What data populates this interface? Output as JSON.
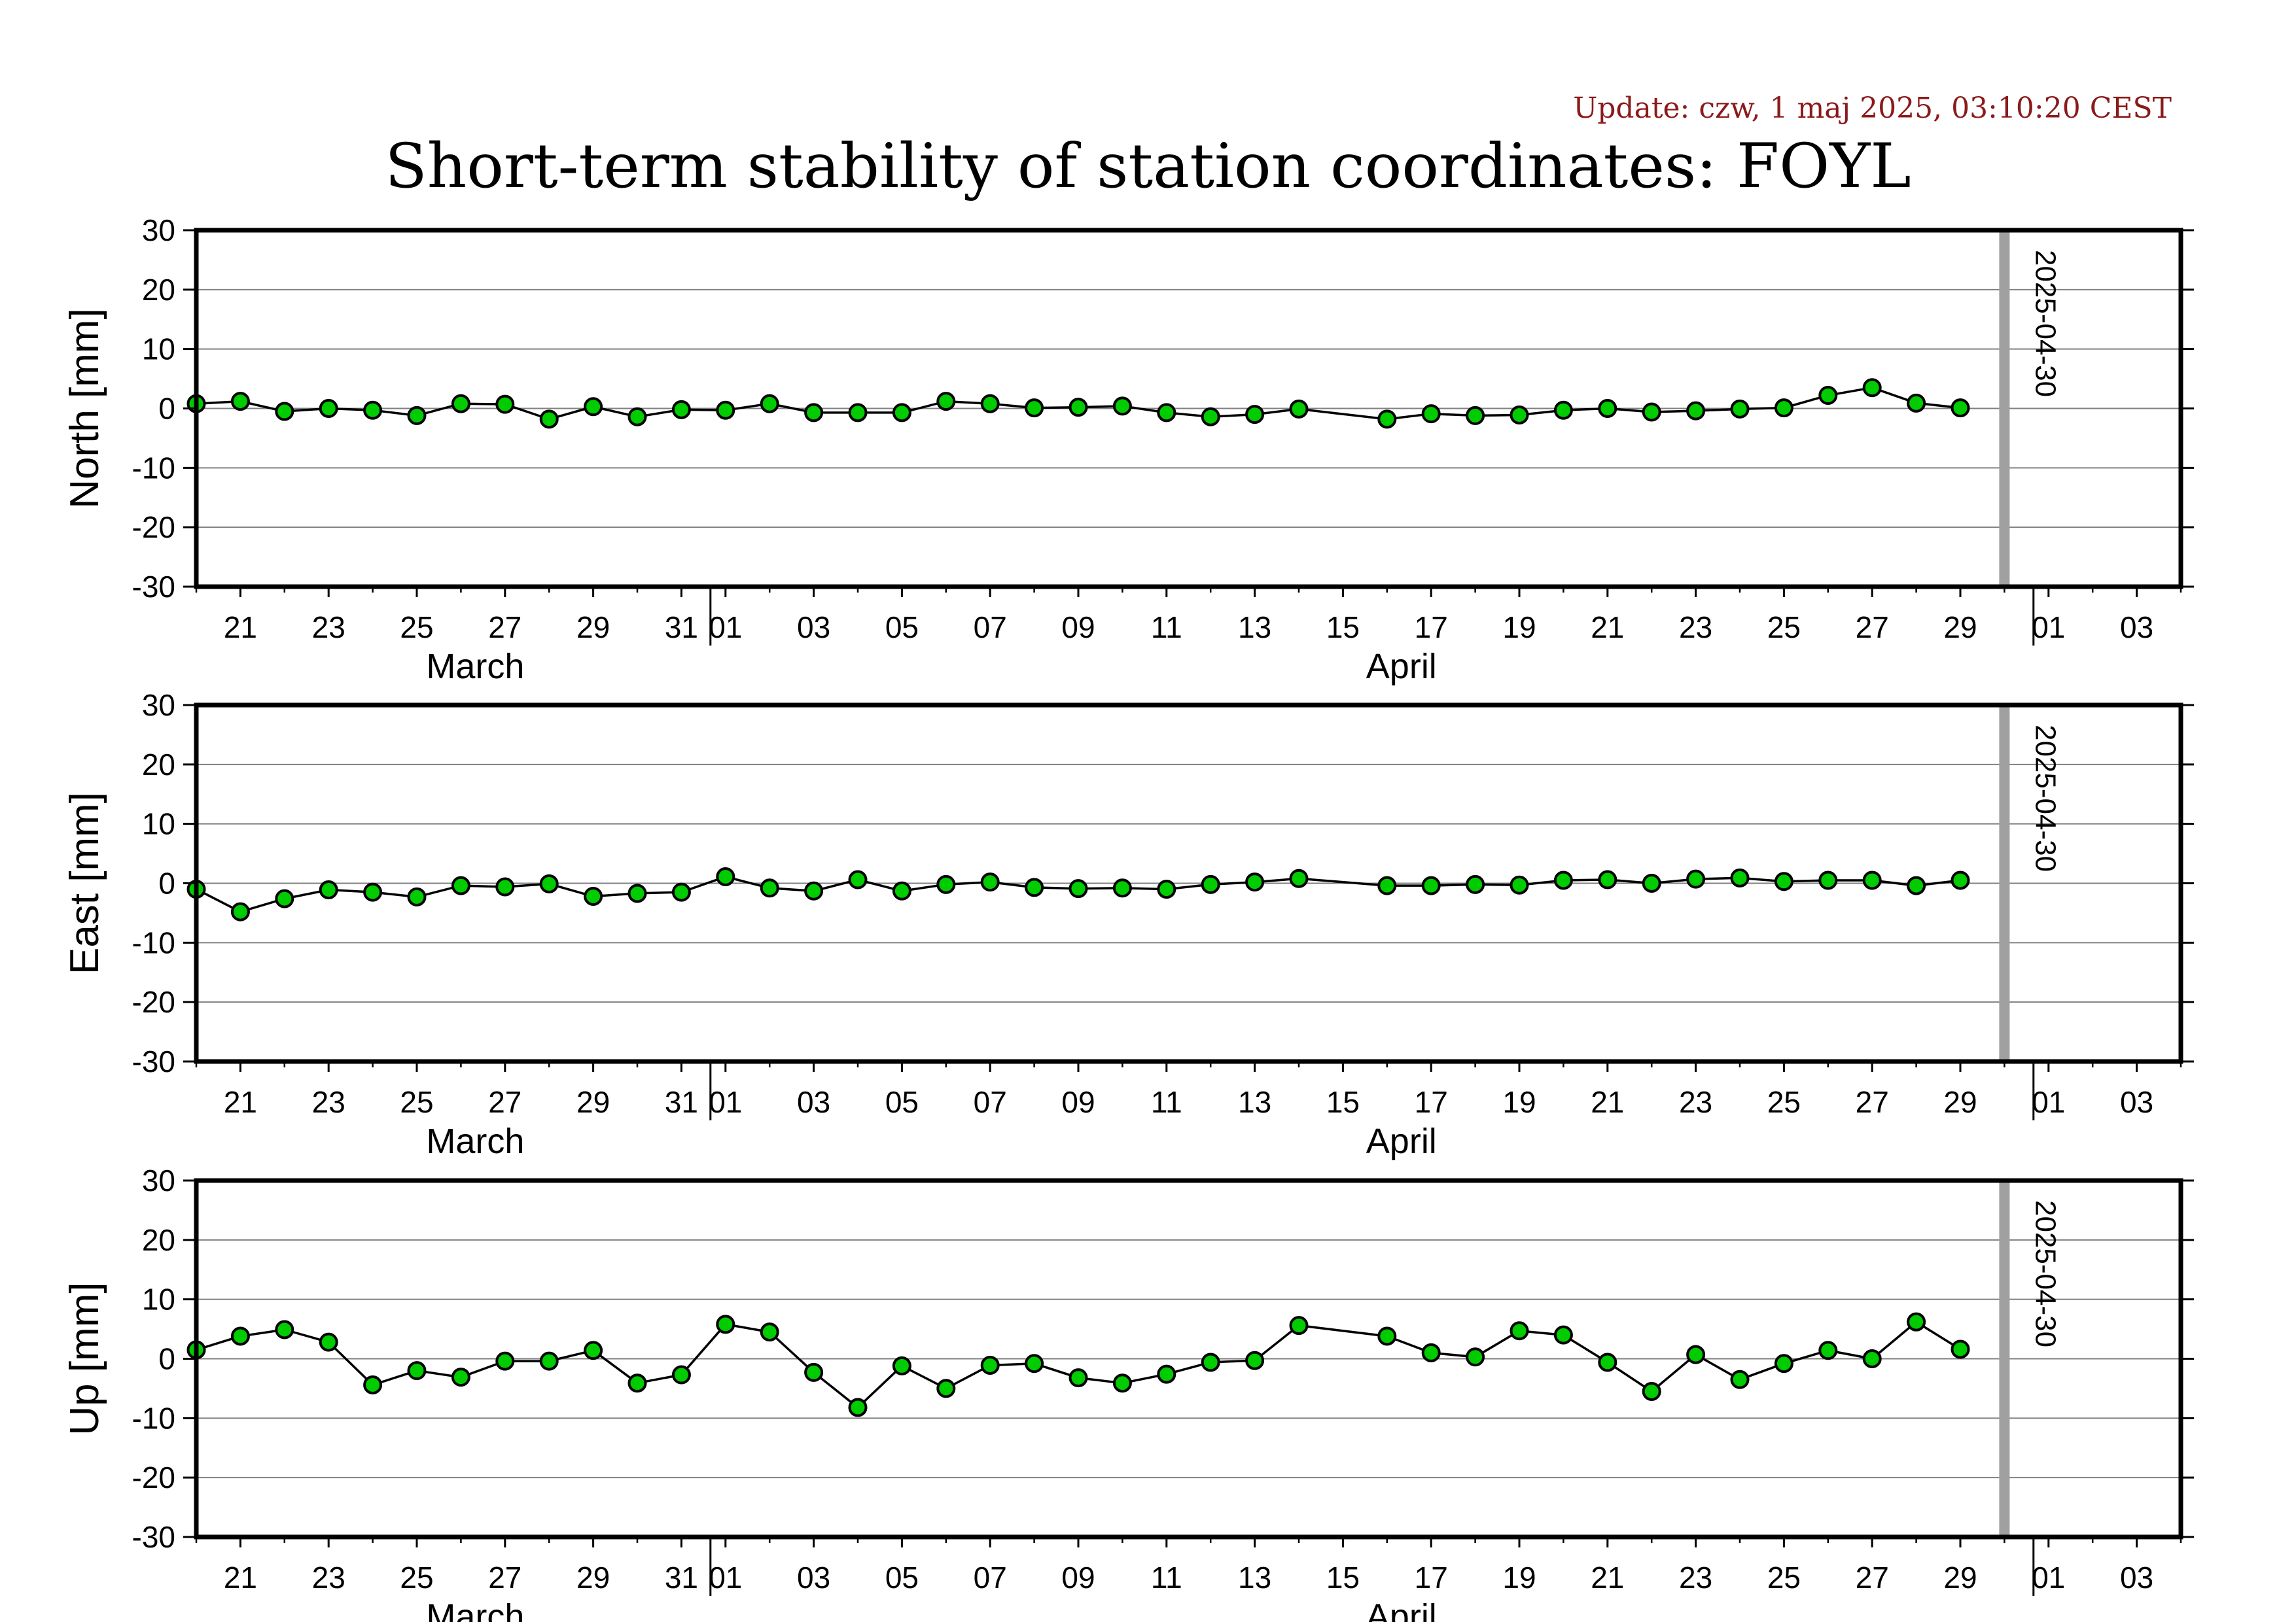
{
  "update_text": "Update: czw, 1 maj 2025, 03:10:20 CEST",
  "title": "Short-term stability of station coordinates: FOYL",
  "colors": {
    "marker_fill": "#00cc00",
    "marker_stroke": "#000000",
    "line": "#000000",
    "grid": "#808080",
    "marker_line": "#a0a0a0",
    "update_text": "#8b1a1a"
  },
  "x_axis": {
    "start": "2025-03-20",
    "end": "2025-05-04",
    "tick_dates": [
      "2025-03-21",
      "2025-03-23",
      "2025-03-25",
      "2025-03-27",
      "2025-03-29",
      "2025-03-31",
      "2025-04-01",
      "2025-04-03",
      "2025-04-05",
      "2025-04-07",
      "2025-04-09",
      "2025-04-11",
      "2025-04-13",
      "2025-04-15",
      "2025-04-17",
      "2025-04-19",
      "2025-04-21",
      "2025-04-23",
      "2025-04-25",
      "2025-04-27",
      "2025-04-29",
      "2025-05-01",
      "2025-05-03"
    ],
    "tick_labels": [
      "21",
      "23",
      "25",
      "27",
      "29",
      "31",
      "01",
      "03",
      "05",
      "07",
      "09",
      "11",
      "13",
      "15",
      "17",
      "19",
      "21",
      "23",
      "25",
      "27",
      "29",
      "01",
      "03"
    ],
    "month_boundaries": [
      "2025-04-01",
      "2025-05-01"
    ],
    "month_labels": [
      {
        "label": "March",
        "date": "2025-03-26"
      },
      {
        "label": "April",
        "date": "2025-04-16"
      }
    ]
  },
  "marker": {
    "date": "2025-04-30",
    "label": "2025-04-30"
  },
  "chart_data": [
    {
      "type": "line",
      "ylabel": "North [mm]",
      "ylim": [
        -30,
        30
      ],
      "yticks": [
        30,
        20,
        10,
        0,
        -10,
        -20,
        -30
      ],
      "grid": true,
      "x": [
        "2025-03-20",
        "2025-03-21",
        "2025-03-22",
        "2025-03-23",
        "2025-03-24",
        "2025-03-25",
        "2025-03-26",
        "2025-03-27",
        "2025-03-28",
        "2025-03-29",
        "2025-03-30",
        "2025-03-31",
        "2025-04-01",
        "2025-04-02",
        "2025-04-03",
        "2025-04-04",
        "2025-04-05",
        "2025-04-06",
        "2025-04-07",
        "2025-04-08",
        "2025-04-09",
        "2025-04-10",
        "2025-04-11",
        "2025-04-12",
        "2025-04-13",
        "2025-04-14",
        "2025-04-16",
        "2025-04-17",
        "2025-04-18",
        "2025-04-19",
        "2025-04-20",
        "2025-04-21",
        "2025-04-22",
        "2025-04-23",
        "2025-04-24",
        "2025-04-25",
        "2025-04-26",
        "2025-04-27",
        "2025-04-28",
        "2025-04-29"
      ],
      "values": [
        0.8,
        1.2,
        -0.5,
        0,
        -0.3,
        -1.2,
        0.8,
        0.7,
        -1.8,
        0.3,
        -1.4,
        -0.2,
        -0.3,
        0.8,
        -0.7,
        -0.7,
        -0.7,
        1.2,
        0.8,
        0.1,
        0.2,
        0.4,
        -0.7,
        -1.4,
        -1.0,
        -0.1,
        -1.8,
        -0.9,
        -1.2,
        -1.1,
        -0.3,
        0,
        -0.6,
        -0.4,
        -0.1,
        0.1,
        2.2,
        3.5,
        0.9,
        0.1
      ]
    },
    {
      "type": "line",
      "ylabel": "East [mm]",
      "ylim": [
        -30,
        30
      ],
      "yticks": [
        30,
        20,
        10,
        0,
        -10,
        -20,
        -30
      ],
      "grid": true,
      "x": [
        "2025-03-20",
        "2025-03-21",
        "2025-03-22",
        "2025-03-23",
        "2025-03-24",
        "2025-03-25",
        "2025-03-26",
        "2025-03-27",
        "2025-03-28",
        "2025-03-29",
        "2025-03-30",
        "2025-03-31",
        "2025-04-01",
        "2025-04-02",
        "2025-04-03",
        "2025-04-04",
        "2025-04-05",
        "2025-04-06",
        "2025-04-07",
        "2025-04-08",
        "2025-04-09",
        "2025-04-10",
        "2025-04-11",
        "2025-04-12",
        "2025-04-13",
        "2025-04-14",
        "2025-04-16",
        "2025-04-17",
        "2025-04-18",
        "2025-04-19",
        "2025-04-20",
        "2025-04-21",
        "2025-04-22",
        "2025-04-23",
        "2025-04-24",
        "2025-04-25",
        "2025-04-26",
        "2025-04-27",
        "2025-04-28",
        "2025-04-29"
      ],
      "values": [
        -1.0,
        -4.8,
        -2.6,
        -1.1,
        -1.5,
        -2.3,
        -0.4,
        -0.6,
        -0.1,
        -2.2,
        -1.7,
        -1.5,
        1.1,
        -0.8,
        -1.3,
        0.6,
        -1.3,
        -0.2,
        0.2,
        -0.7,
        -0.9,
        -0.8,
        -1.0,
        -0.2,
        0.2,
        0.8,
        -0.4,
        -0.4,
        -0.2,
        -0.3,
        0.5,
        0.6,
        0,
        0.7,
        0.9,
        0.3,
        0.5,
        0.5,
        -0.4,
        0.5
      ]
    },
    {
      "type": "line",
      "ylabel": "Up [mm]",
      "ylim": [
        -30,
        30
      ],
      "yticks": [
        30,
        20,
        10,
        0,
        -10,
        -20,
        -30
      ],
      "grid": true,
      "x": [
        "2025-03-20",
        "2025-03-21",
        "2025-03-22",
        "2025-03-23",
        "2025-03-24",
        "2025-03-25",
        "2025-03-26",
        "2025-03-27",
        "2025-03-28",
        "2025-03-29",
        "2025-03-30",
        "2025-03-31",
        "2025-04-01",
        "2025-04-02",
        "2025-04-03",
        "2025-04-04",
        "2025-04-05",
        "2025-04-06",
        "2025-04-07",
        "2025-04-08",
        "2025-04-09",
        "2025-04-10",
        "2025-04-11",
        "2025-04-12",
        "2025-04-13",
        "2025-04-14",
        "2025-04-16",
        "2025-04-17",
        "2025-04-18",
        "2025-04-19",
        "2025-04-20",
        "2025-04-21",
        "2025-04-22",
        "2025-04-23",
        "2025-04-24",
        "2025-04-25",
        "2025-04-26",
        "2025-04-27",
        "2025-04-28",
        "2025-04-29"
      ],
      "values": [
        1.5,
        3.8,
        4.9,
        2.8,
        -4.4,
        -2.0,
        -3.1,
        -0.4,
        -0.4,
        1.4,
        -4.1,
        -2.7,
        5.8,
        4.5,
        -2.3,
        -8.2,
        -1.2,
        -5.0,
        -1.1,
        -0.8,
        -3.2,
        -4.1,
        -2.6,
        -0.6,
        -0.3,
        5.6,
        3.8,
        1.0,
        0.3,
        4.7,
        4.0,
        -0.6,
        -5.5,
        0.7,
        -3.5,
        -0.8,
        1.4,
        0,
        6.2,
        1.6
      ]
    }
  ]
}
